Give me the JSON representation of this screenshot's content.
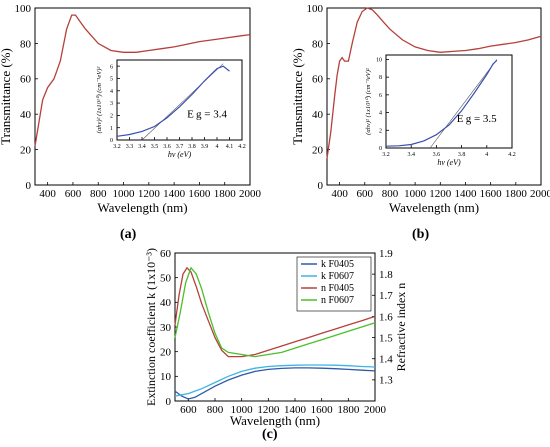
{
  "panels": {
    "a": {
      "caption": "(a)"
    },
    "b": {
      "caption": "(b)"
    },
    "c": {
      "caption": "(c)"
    }
  },
  "chart_data": [
    {
      "id": "a",
      "type": "line",
      "xlabel": "Wavelength (nm)",
      "ylabel": "Transmittance (%)",
      "xlim": [
        300,
        2000
      ],
      "ylim": [
        0,
        100
      ],
      "xticks": [
        400,
        600,
        800,
        1000,
        1200,
        1400,
        1600,
        1800,
        2000
      ],
      "yticks": [
        0,
        20,
        40,
        60,
        80,
        100
      ],
      "series": [
        {
          "color": "#b5403b",
          "x": [
            300,
            330,
            360,
            400,
            450,
            500,
            550,
            590,
            620,
            660,
            700,
            750,
            800,
            900,
            1000,
            1100,
            1200,
            1300,
            1400,
            1500,
            1600,
            1700,
            1800,
            1900,
            2000
          ],
          "y": [
            22,
            35,
            48,
            55,
            60,
            70,
            88,
            96,
            96,
            92,
            88,
            84,
            80,
            76,
            75,
            75,
            76,
            77,
            78,
            79.5,
            81,
            82,
            83,
            84,
            85
          ]
        }
      ],
      "inset": {
        "xlabel": "hν (eV)",
        "ylabel": "(αhν)² (1x10¹⁰) (cm⁻¹eV)²",
        "annotation": "E_g = 3.4",
        "xlim": [
          3.2,
          4.2
        ],
        "ylim": [
          0,
          6.5
        ],
        "xticks": [
          3.2,
          3.3,
          3.4,
          3.5,
          3.6,
          3.7,
          3.8,
          3.9,
          4.0,
          4.1,
          4.2
        ],
        "yticks": [
          0,
          1,
          2,
          3,
          4,
          5,
          6
        ],
        "data": {
          "x": [
            3.2,
            3.3,
            3.4,
            3.5,
            3.6,
            3.7,
            3.8,
            3.9,
            4.0,
            4.05,
            4.1
          ],
          "y": [
            0.3,
            0.45,
            0.7,
            1.1,
            1.8,
            2.7,
            3.7,
            4.8,
            5.8,
            6.0,
            5.6
          ]
        },
        "fit": {
          "x": [
            3.4,
            4.05
          ],
          "y": [
            0,
            6.2
          ]
        }
      }
    },
    {
      "id": "b",
      "type": "line",
      "xlabel": "Wavelength (nm)",
      "ylabel": "Transmittance (%)",
      "xlim": [
        300,
        2000
      ],
      "ylim": [
        0,
        100
      ],
      "xticks": [
        400,
        600,
        800,
        1000,
        1200,
        1400,
        1600,
        1800,
        2000
      ],
      "yticks": [
        0,
        20,
        40,
        60,
        80,
        100
      ],
      "series": [
        {
          "color": "#b5403b",
          "x": [
            300,
            330,
            360,
            380,
            400,
            420,
            440,
            470,
            500,
            540,
            580,
            620,
            660,
            700,
            750,
            800,
            900,
            1000,
            1100,
            1200,
            1300,
            1400,
            1500,
            1600,
            1700,
            1800,
            1900,
            2000
          ],
          "y": [
            15,
            30,
            50,
            62,
            70,
            72,
            70,
            70,
            80,
            92,
            98,
            100,
            99,
            96,
            92,
            88,
            82,
            78,
            76,
            75,
            75.5,
            76,
            77,
            78.5,
            79.5,
            80.5,
            82,
            84
          ]
        }
      ],
      "inset": {
        "xlabel": "hν (eV)",
        "ylabel": "(αhν)² (1x10¹⁰) (cm⁻¹eV)²",
        "annotation": "E_g = 3.5",
        "xlim": [
          3.2,
          4.2
        ],
        "ylim": [
          0,
          10.5
        ],
        "xticks": [
          3.2,
          3.4,
          3.6,
          3.8,
          4.0,
          4.2
        ],
        "yticks": [
          0,
          2,
          4,
          6,
          8,
          10
        ],
        "data": {
          "x": [
            3.2,
            3.3,
            3.4,
            3.5,
            3.6,
            3.7,
            3.8,
            3.9,
            4.0,
            4.05,
            4.08
          ],
          "y": [
            0.2,
            0.25,
            0.4,
            0.8,
            1.5,
            2.6,
            4.2,
            6.2,
            8.3,
            9.5,
            9.9
          ]
        },
        "fit": {
          "x": [
            3.55,
            4.08
          ],
          "y": [
            0,
            10
          ]
        }
      }
    },
    {
      "id": "c",
      "type": "line",
      "xlabel": "Wavelength (nm)",
      "ylabel": "Extinction coefficient k (1x10⁻³)",
      "y2label": "Refractive index n",
      "xlim": [
        500,
        2000
      ],
      "ylim": [
        0,
        60
      ],
      "y2lim": [
        1.2,
        1.9
      ],
      "xticks": [
        600,
        800,
        1000,
        1200,
        1400,
        1600,
        1800,
        2000
      ],
      "yticks": [
        0,
        10,
        20,
        30,
        40,
        50,
        60
      ],
      "y2ticks": [
        1.3,
        1.4,
        1.5,
        1.6,
        1.7,
        1.8,
        1.9
      ],
      "legend_position": "top-right",
      "series": [
        {
          "name": "k F0405",
          "axis": "left",
          "color": "#2f5aa8",
          "x": [
            500,
            550,
            600,
            650,
            700,
            800,
            900,
            1000,
            1100,
            1200,
            1300,
            1400,
            1500,
            1600,
            1700,
            1800,
            1900,
            2000
          ],
          "y": [
            4,
            2,
            0.8,
            1.5,
            3,
            6,
            8.5,
            10.5,
            12,
            12.8,
            13.2,
            13.4,
            13.4,
            13.3,
            13.1,
            12.8,
            12.5,
            12.2
          ]
        },
        {
          "name": "k F0607",
          "axis": "left",
          "color": "#3fb3e3",
          "x": [
            500,
            550,
            600,
            650,
            700,
            800,
            900,
            1000,
            1100,
            1200,
            1300,
            1400,
            1500,
            1600,
            1700,
            1800,
            1900,
            2000
          ],
          "y": [
            2,
            2.5,
            3,
            4,
            5,
            7.5,
            10,
            12,
            13.3,
            14,
            14.3,
            14.5,
            14.6,
            14.6,
            14.5,
            14.3,
            14,
            13.8
          ]
        },
        {
          "name": "n F0405",
          "axis": "right",
          "color": "#b5403b",
          "x": [
            500,
            530,
            560,
            590,
            620,
            660,
            700,
            750,
            800,
            850,
            900,
            1000,
            1100,
            1200,
            1300,
            1400,
            1500,
            1600,
            1700,
            1800,
            1900,
            2000
          ],
          "y": [
            1.56,
            1.7,
            1.8,
            1.83,
            1.81,
            1.74,
            1.66,
            1.58,
            1.5,
            1.44,
            1.41,
            1.41,
            1.42,
            1.44,
            1.46,
            1.48,
            1.5,
            1.52,
            1.54,
            1.56,
            1.58,
            1.6
          ]
        },
        {
          "name": "n F0607",
          "axis": "right",
          "color": "#4bbf2a",
          "x": [
            500,
            540,
            580,
            620,
            660,
            700,
            750,
            800,
            850,
            900,
            1000,
            1100,
            1200,
            1300,
            1400,
            1500,
            1600,
            1700,
            1800,
            1900,
            2000
          ],
          "y": [
            1.5,
            1.62,
            1.76,
            1.83,
            1.8,
            1.73,
            1.62,
            1.52,
            1.45,
            1.43,
            1.42,
            1.41,
            1.42,
            1.43,
            1.45,
            1.47,
            1.49,
            1.51,
            1.53,
            1.55,
            1.57
          ]
        }
      ]
    }
  ]
}
